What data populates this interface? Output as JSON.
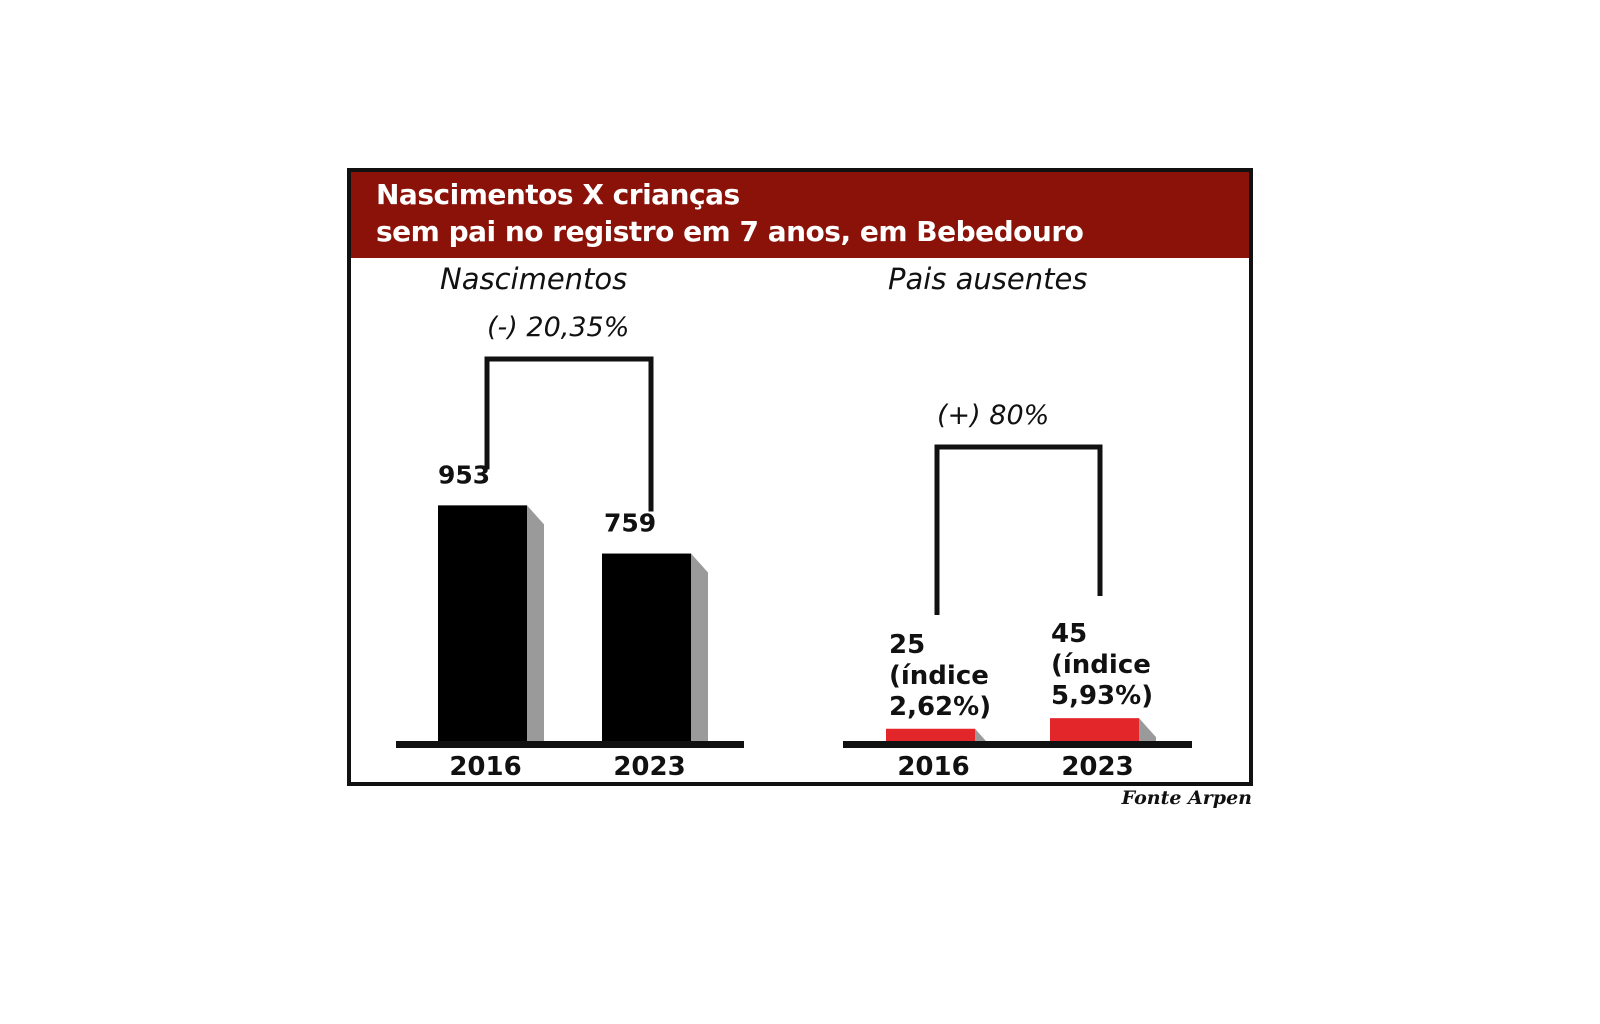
{
  "header": {
    "title_line1": "Nascimentos X crianças",
    "title_line2": "sem pai no registro em 7 anos, em Bebedouro"
  },
  "source": "Fonte Arpen",
  "colors": {
    "header_bg": "#8b1209",
    "bar_black": "#000000",
    "bar_red": "#e3262a",
    "bar_side": "#9a9a9a"
  },
  "chart_data": [
    {
      "type": "bar",
      "title": "Nascimentos",
      "categories": [
        "2016",
        "2023"
      ],
      "values": [
        953,
        759
      ],
      "value_labels": [
        "953",
        "759"
      ],
      "change_label": "(-) 20,35%",
      "color": "#000000"
    },
    {
      "type": "bar",
      "title": "Pais ausentes",
      "categories": [
        "2016",
        "2023"
      ],
      "values": [
        25,
        45
      ],
      "value_labels": [
        [
          "25",
          "(índice",
          "2,62%)"
        ],
        [
          "45",
          "(índice",
          "5,93%)"
        ]
      ],
      "change_label": "(+) 80%",
      "color": "#e3262a"
    }
  ]
}
